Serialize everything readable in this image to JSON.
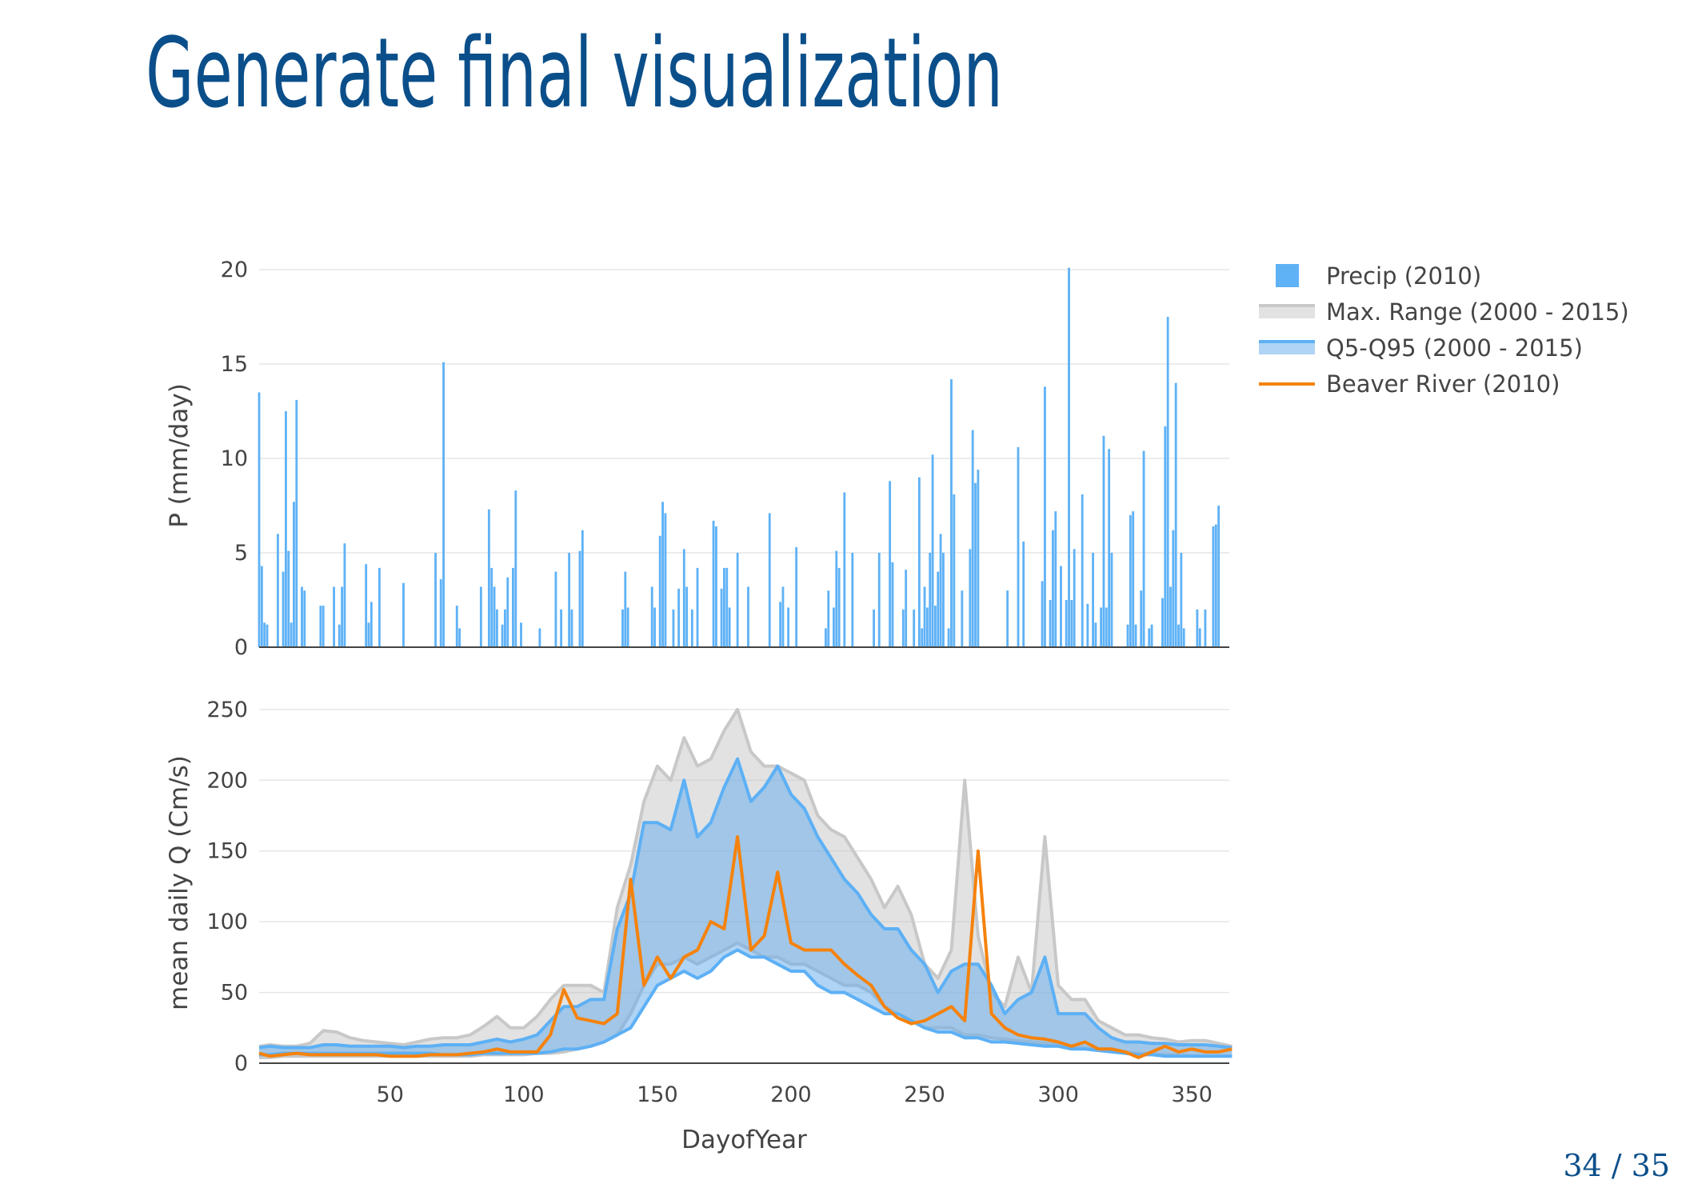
{
  "title": "Generate final visualization",
  "page_number": "34 / 35",
  "chart_data": [
    {
      "type": "bar",
      "ylabel": "P (mm/day)",
      "x": [
        1,
        2,
        3,
        4,
        8,
        10,
        11,
        12,
        13,
        14,
        15,
        17,
        18,
        24,
        25,
        29,
        31,
        32,
        33,
        41,
        42,
        43,
        46,
        55,
        67,
        69,
        70,
        75,
        76,
        84,
        87,
        88,
        89,
        90,
        92,
        93,
        94,
        96,
        97,
        99,
        106,
        112,
        114,
        117,
        118,
        121,
        122,
        137,
        138,
        139,
        148,
        149,
        151,
        152,
        153,
        156,
        158,
        160,
        161,
        163,
        165,
        171,
        172,
        174,
        175,
        176,
        177,
        180,
        184,
        192,
        196,
        197,
        199,
        202,
        213,
        214,
        216,
        217,
        218,
        220,
        223,
        231,
        233,
        237,
        238,
        242,
        243,
        246,
        248,
        249,
        250,
        251,
        252,
        253,
        254,
        255,
        256,
        257,
        259,
        260,
        261,
        264,
        267,
        268,
        269,
        270,
        281,
        285,
        287,
        294,
        295,
        297,
        298,
        299,
        301,
        303,
        304,
        305,
        306,
        309,
        311,
        313,
        314,
        316,
        317,
        318,
        319,
        320,
        326,
        327,
        328,
        329,
        331,
        332,
        334,
        335,
        339,
        340,
        341,
        342,
        343,
        344,
        345,
        346,
        347,
        352,
        353,
        355,
        358,
        359,
        360
      ],
      "series": [
        {
          "name": "Precip (2010)",
          "color": "#5fb2f6",
          "values": [
            13.5,
            4.3,
            1.3,
            1.2,
            6,
            4,
            12.5,
            5.1,
            1.3,
            7.7,
            13.1,
            3.2,
            3,
            2.2,
            2.2,
            3.2,
            1.2,
            3.2,
            5.5,
            4.4,
            1.3,
            2.4,
            4.2,
            3.4,
            5,
            3.6,
            15.1,
            2.2,
            1,
            3.2,
            7.3,
            4.2,
            3.2,
            2,
            1.2,
            2,
            3.7,
            4.2,
            8.3,
            1.3,
            1,
            4,
            2,
            5,
            2,
            5.1,
            6.2,
            2,
            4,
            2.1,
            3.2,
            2.1,
            5.9,
            7.7,
            7.1,
            2,
            3.1,
            5.2,
            3.2,
            2,
            4.2,
            6.7,
            6.4,
            3.1,
            4.2,
            4.2,
            2.1,
            5,
            3.2,
            7.1,
            2.4,
            3.2,
            2.1,
            5.3,
            1,
            3,
            2.1,
            5.1,
            4.2,
            8.2,
            5,
            2,
            5,
            8.8,
            4.5,
            2,
            4.1,
            2,
            9,
            1,
            3.2,
            2.1,
            5,
            10.2,
            2.2,
            4,
            6,
            5,
            1,
            14.2,
            8.1,
            3,
            5.2,
            11.5,
            8.7,
            9.4,
            3,
            10.6,
            5.6,
            3.5,
            13.8,
            2.5,
            6.2,
            7.2,
            4.3,
            2.5,
            20.1,
            2.5,
            5.2,
            8.1,
            2.3,
            5,
            1.3,
            2.1,
            11.2,
            2.1,
            10.5,
            5,
            1.2,
            7,
            7.2,
            1.2,
            3,
            10.4,
            1,
            1.2,
            2.6,
            11.7,
            17.5,
            3.2,
            6.2,
            14,
            1.2,
            5,
            1,
            2,
            1,
            2,
            6.4,
            6.5,
            7.5
          ]
        }
      ],
      "xlim": [
        1,
        364
      ],
      "ylim": [
        0,
        20.3
      ],
      "yticks": [
        0,
        5,
        10,
        15,
        20
      ],
      "grid": true
    },
    {
      "type": "band",
      "xlabel": "DayofYear",
      "ylabel": "mean daily Q (Cm/s)",
      "x": [
        1,
        5,
        10,
        15,
        20,
        25,
        30,
        35,
        40,
        45,
        50,
        55,
        60,
        65,
        70,
        75,
        80,
        85,
        90,
        95,
        100,
        105,
        110,
        115,
        120,
        125,
        130,
        135,
        140,
        145,
        150,
        155,
        160,
        165,
        170,
        175,
        180,
        185,
        190,
        195,
        200,
        205,
        210,
        215,
        220,
        225,
        230,
        235,
        240,
        245,
        250,
        255,
        260,
        265,
        270,
        275,
        280,
        285,
        290,
        295,
        300,
        305,
        310,
        315,
        320,
        325,
        330,
        335,
        340,
        345,
        350,
        355,
        360,
        365
      ],
      "series": [
        {
          "name": "Max. Range (2000 - 2015)",
          "color": "#c8c8c8",
          "fill": "rgba(190,190,190,0.45)",
          "high": [
            12,
            13,
            12,
            12,
            14,
            23,
            22,
            18,
            16,
            15,
            14,
            13,
            15,
            17,
            18,
            18,
            20,
            26,
            33,
            25,
            25,
            33,
            45,
            55,
            55,
            55,
            50,
            110,
            140,
            185,
            210,
            200,
            230,
            210,
            215,
            235,
            250,
            220,
            210,
            210,
            205,
            200,
            175,
            165,
            160,
            145,
            130,
            110,
            125,
            105,
            70,
            60,
            80,
            200,
            90,
            50,
            40,
            75,
            50,
            160,
            55,
            45,
            45,
            30,
            25,
            20,
            20,
            18,
            17,
            15,
            16,
            16,
            14,
            12
          ],
          "low": [
            4,
            4,
            5,
            5,
            5,
            5,
            5,
            5,
            5,
            5,
            5,
            5,
            5,
            5,
            5,
            5,
            5,
            6,
            6,
            6,
            6,
            7,
            7,
            8,
            10,
            12,
            15,
            20,
            35,
            55,
            70,
            70,
            75,
            70,
            75,
            80,
            85,
            80,
            75,
            75,
            70,
            70,
            65,
            60,
            55,
            55,
            50,
            40,
            35,
            30,
            25,
            25,
            25,
            20,
            20,
            18,
            17,
            16,
            15,
            14,
            13,
            12,
            11,
            10,
            9,
            8,
            7,
            7,
            6,
            6,
            5,
            5,
            5,
            5
          ]
        },
        {
          "name": "Q5-Q95 (2000 - 2015)",
          "color": "#5db0f5",
          "fill": "rgba(95,170,235,0.5)",
          "high": [
            11,
            12,
            11,
            11,
            11,
            13,
            13,
            12,
            12,
            12,
            12,
            11,
            12,
            12,
            13,
            13,
            13,
            15,
            17,
            15,
            17,
            20,
            30,
            40,
            40,
            45,
            45,
            95,
            120,
            170,
            170,
            165,
            200,
            160,
            170,
            195,
            215,
            185,
            195,
            210,
            190,
            180,
            160,
            145,
            130,
            120,
            105,
            95,
            95,
            80,
            70,
            50,
            65,
            70,
            70,
            55,
            35,
            45,
            50,
            75,
            35,
            35,
            35,
            25,
            18,
            15,
            15,
            14,
            14,
            13,
            13,
            13,
            12,
            11
          ],
          "low": [
            6,
            6,
            7,
            7,
            7,
            7,
            7,
            7,
            7,
            7,
            7,
            7,
            7,
            7,
            6,
            6,
            6,
            7,
            7,
            7,
            7,
            7,
            8,
            10,
            10,
            12,
            15,
            20,
            25,
            40,
            55,
            60,
            65,
            60,
            65,
            75,
            80,
            75,
            75,
            70,
            65,
            65,
            55,
            50,
            50,
            45,
            40,
            35,
            35,
            30,
            25,
            22,
            22,
            18,
            18,
            15,
            15,
            14,
            13,
            12,
            12,
            10,
            10,
            9,
            8,
            7,
            6,
            6,
            5,
            5,
            5,
            5,
            5,
            5
          ]
        },
        {
          "name": "Beaver River (2010)",
          "color": "#f5820d",
          "values": [
            7,
            5,
            6,
            7,
            6,
            6,
            6,
            6,
            6,
            6,
            5,
            5,
            5,
            6,
            6,
            6,
            7,
            8,
            10,
            8,
            8,
            8,
            20,
            52,
            32,
            30,
            28,
            35,
            130,
            55,
            75,
            60,
            75,
            80,
            100,
            95,
            160,
            80,
            90,
            135,
            85,
            80,
            80,
            80,
            70,
            62,
            55,
            40,
            32,
            28,
            30,
            35,
            40,
            30,
            150,
            35,
            25,
            20,
            18,
            17,
            15,
            12,
            15,
            10,
            10,
            8,
            4,
            8,
            12,
            8,
            10,
            8,
            8,
            10
          ]
        }
      ],
      "xlim": [
        1,
        364
      ],
      "ylim": [
        0,
        255
      ],
      "xticks": [
        50,
        100,
        150,
        200,
        250,
        300,
        350
      ],
      "yticks": [
        0,
        50,
        100,
        150,
        200,
        250
      ],
      "grid": true
    }
  ]
}
